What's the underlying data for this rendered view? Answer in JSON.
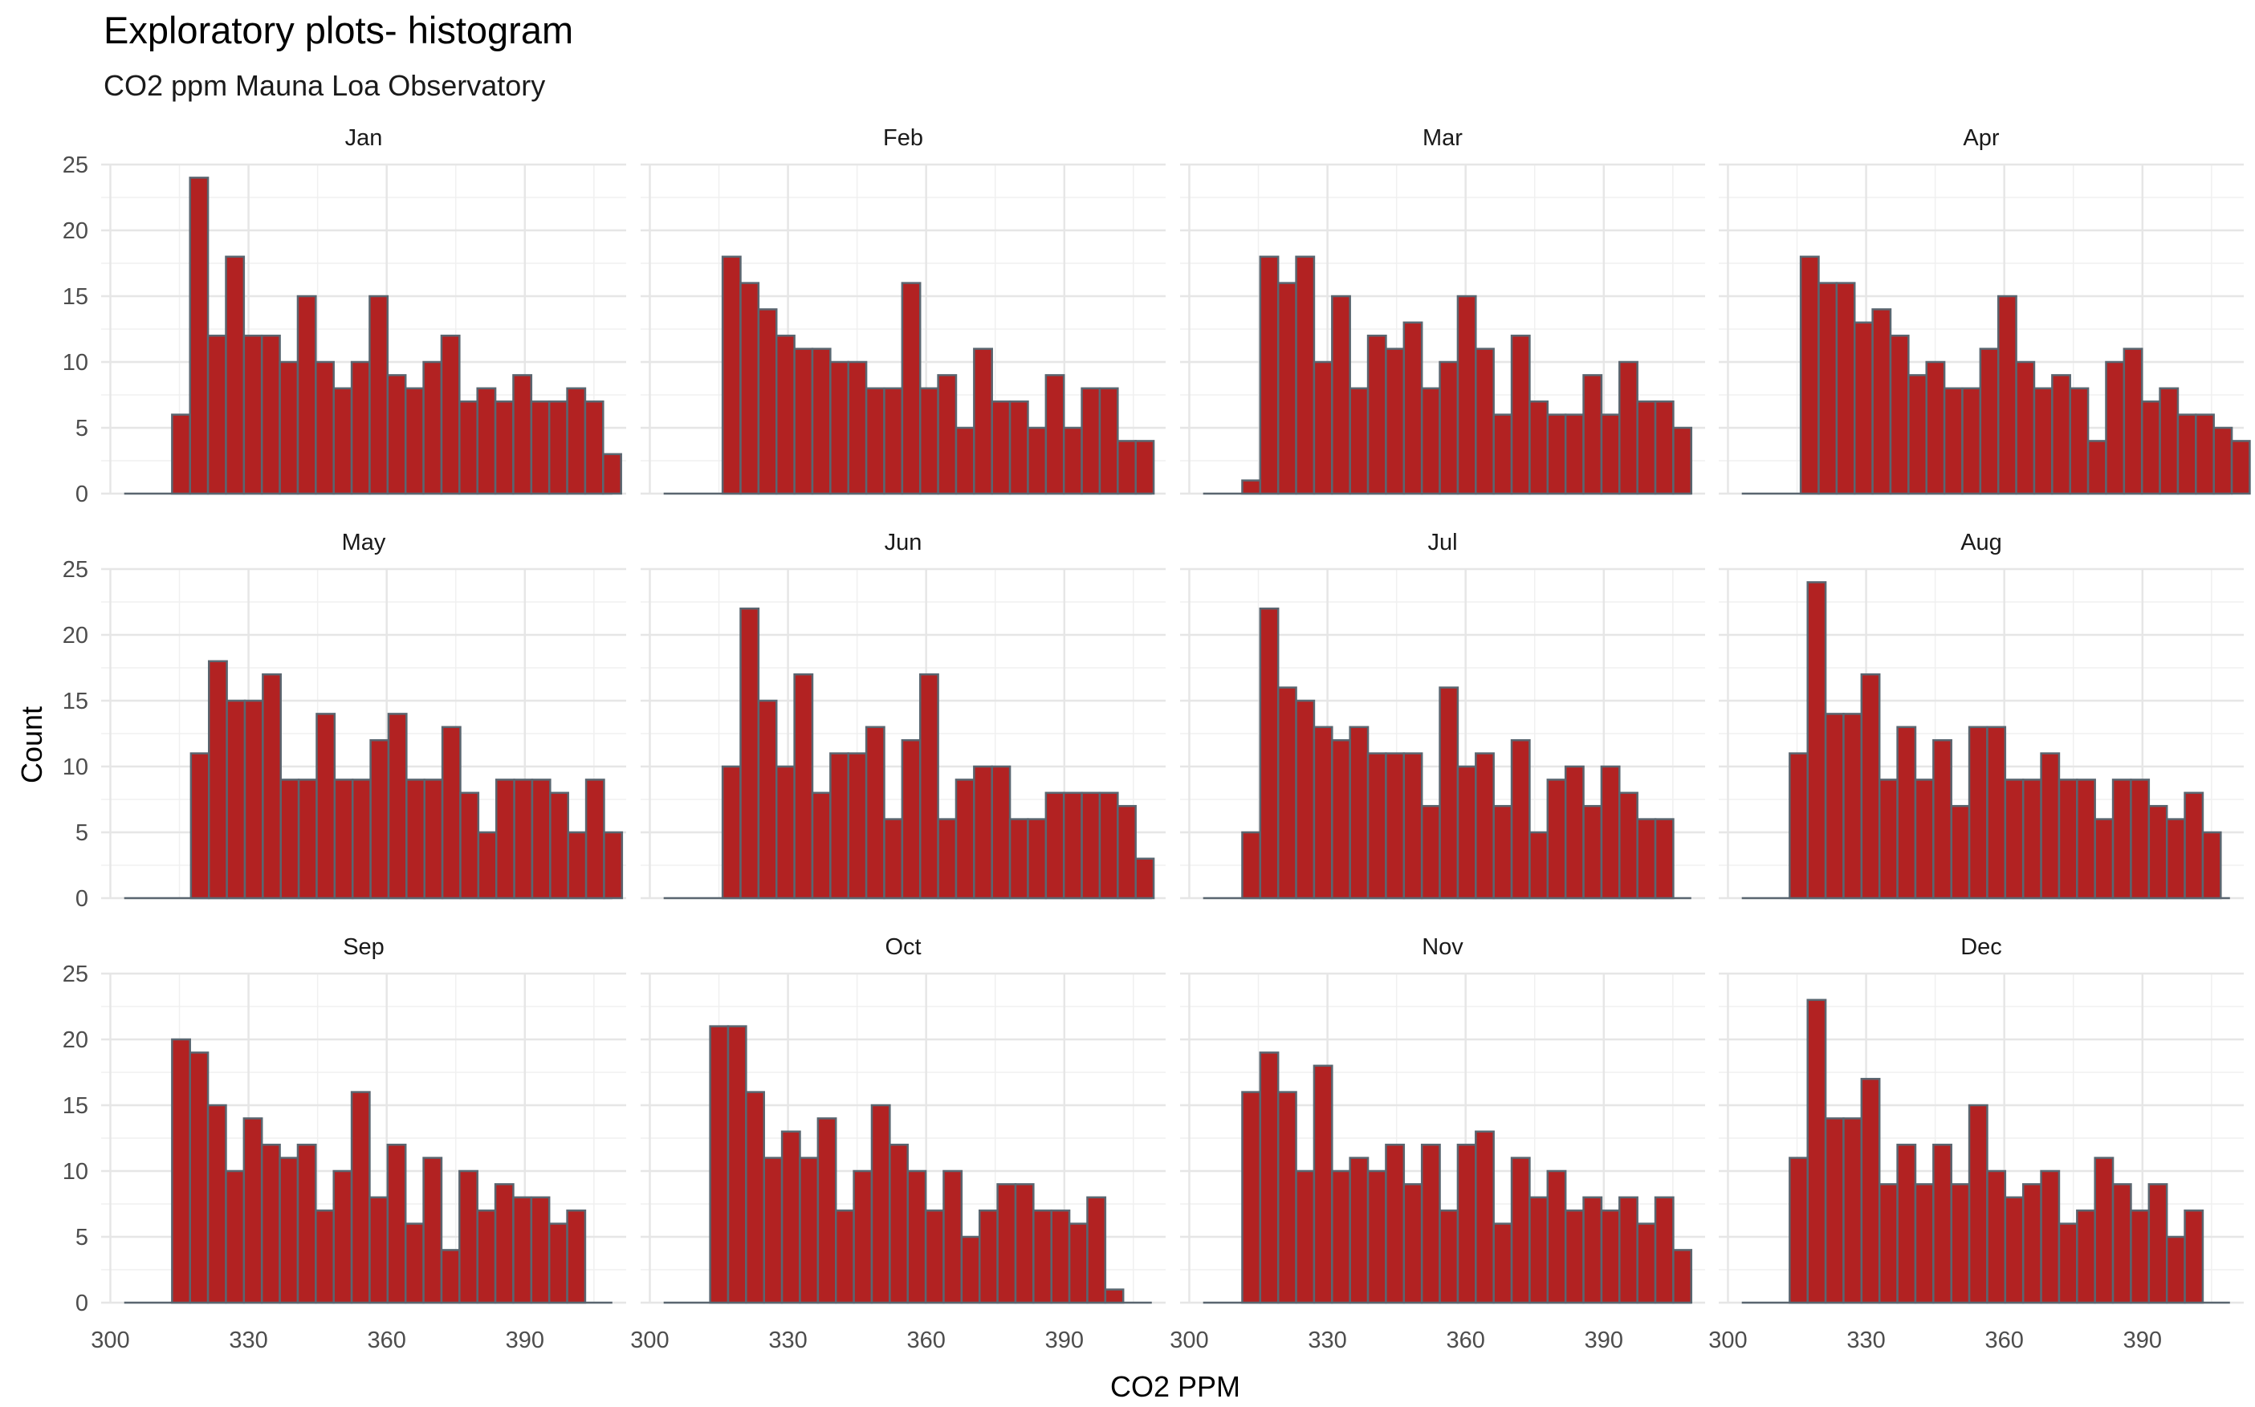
{
  "title": "Exploratory plots- histogram",
  "subtitle": "CO2 ppm Mauna Loa Observatory",
  "chart_data": {
    "type": "bar",
    "chart_kind": "faceted histogram",
    "xlabel": "CO2 PPM",
    "ylabel": "Count",
    "xlim": [
      298,
      412
    ],
    "ylim": [
      0,
      25
    ],
    "x_ticks": [
      300,
      330,
      360,
      390
    ],
    "y_ticks": [
      0,
      5,
      10,
      15,
      20,
      25
    ],
    "grid": true,
    "bar_fill": "#B22222",
    "bar_outline": "#5a6670",
    "bin_width": 3.9,
    "facets": [
      {
        "label": "Jan",
        "x_start": 313.4,
        "counts": [
          6,
          24,
          12,
          18,
          12,
          12,
          10,
          15,
          10,
          8,
          10,
          15,
          9,
          8,
          10,
          12,
          7,
          8,
          7,
          9,
          7,
          7,
          8,
          7,
          3
        ]
      },
      {
        "label": "Feb",
        "x_start": 315.8,
        "counts": [
          18,
          16,
          14,
          12,
          11,
          11,
          10,
          10,
          8,
          8,
          16,
          8,
          9,
          5,
          11,
          7,
          7,
          5,
          9,
          5,
          8,
          8,
          4,
          4
        ]
      },
      {
        "label": "Mar",
        "x_start": 311.5,
        "counts": [
          1,
          18,
          16,
          18,
          10,
          15,
          8,
          12,
          11,
          13,
          8,
          10,
          15,
          11,
          6,
          12,
          7,
          6,
          6,
          9,
          6,
          10,
          7,
          7,
          5
        ]
      },
      {
        "label": "Apr",
        "x_start": 315.8,
        "counts": [
          18,
          16,
          16,
          13,
          14,
          12,
          9,
          10,
          8,
          8,
          11,
          15,
          10,
          8,
          9,
          8,
          4,
          10,
          11,
          7,
          8,
          6,
          6,
          5,
          4
        ]
      },
      {
        "label": "May",
        "x_start": 317.5,
        "counts": [
          11,
          18,
          15,
          15,
          17,
          9,
          9,
          14,
          9,
          9,
          12,
          14,
          9,
          9,
          13,
          8,
          5,
          9,
          9,
          9,
          8,
          5,
          9,
          5
        ]
      },
      {
        "label": "Jun",
        "x_start": 315.8,
        "counts": [
          10,
          22,
          15,
          10,
          17,
          8,
          11,
          11,
          13,
          6,
          12,
          17,
          6,
          9,
          10,
          10,
          6,
          6,
          8,
          8,
          8,
          8,
          7,
          3
        ]
      },
      {
        "label": "Jul",
        "x_start": 311.5,
        "counts": [
          5,
          22,
          16,
          15,
          13,
          12,
          13,
          11,
          11,
          11,
          7,
          16,
          10,
          11,
          7,
          12,
          5,
          9,
          10,
          7,
          10,
          8,
          6,
          6
        ]
      },
      {
        "label": "Aug",
        "x_start": 313.4,
        "counts": [
          11,
          24,
          14,
          14,
          17,
          9,
          13,
          9,
          12,
          7,
          13,
          13,
          9,
          9,
          11,
          9,
          9,
          6,
          9,
          9,
          7,
          6,
          8,
          5
        ]
      },
      {
        "label": "Sep",
        "x_start": 313.4,
        "counts": [
          20,
          19,
          15,
          10,
          14,
          12,
          11,
          12,
          7,
          10,
          16,
          8,
          12,
          6,
          11,
          4,
          10,
          7,
          9,
          8,
          8,
          6,
          7
        ]
      },
      {
        "label": "Oct",
        "x_start": 313.1,
        "counts": [
          21,
          21,
          16,
          11,
          13,
          11,
          14,
          7,
          10,
          15,
          12,
          10,
          7,
          10,
          5,
          7,
          9,
          9,
          7,
          7,
          6,
          8,
          1
        ]
      },
      {
        "label": "Nov",
        "x_start": 311.5,
        "counts": [
          16,
          19,
          16,
          10,
          18,
          10,
          11,
          10,
          12,
          9,
          12,
          7,
          12,
          13,
          6,
          11,
          8,
          10,
          7,
          8,
          7,
          8,
          6,
          8,
          4
        ]
      },
      {
        "label": "Dec",
        "x_start": 313.4,
        "counts": [
          11,
          23,
          14,
          14,
          17,
          9,
          12,
          9,
          12,
          9,
          15,
          10,
          8,
          9,
          10,
          6,
          7,
          11,
          9,
          7,
          9,
          5,
          7
        ]
      }
    ]
  }
}
